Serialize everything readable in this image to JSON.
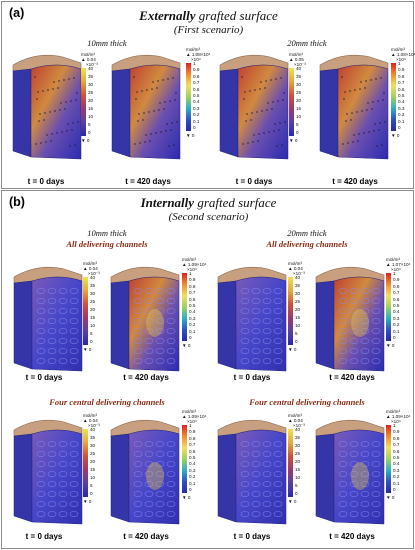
{
  "panel_a": {
    "label": "(a)",
    "title_bold": "Externally",
    "title_rest": " grafted surface",
    "subtitle": "(First scenario)",
    "headers": [
      "10mm thick",
      "20mm thick"
    ],
    "captions": [
      "t = 0 days",
      "t = 420 days",
      "t = 0 days",
      "t = 420 days"
    ],
    "colorbars": [
      {
        "unit": "mol/m³",
        "max": "▲ 0.04",
        "exp": "×10⁻³",
        "ticks": [
          "40",
          "35",
          "30",
          "25",
          "20",
          "15",
          "10",
          "5",
          "0"
        ],
        "min": "▼ 0",
        "gradient": "yellow"
      },
      {
        "unit": "mol/m³",
        "max": "▲ 1.08×10⁴",
        "exp": "×10⁴",
        "ticks": [
          "1",
          "0.9",
          "0.8",
          "0.7",
          "0.6",
          "0.5",
          "0.4",
          "0.3",
          "0.2",
          "0.1",
          "0"
        ],
        "min": "▼ 0",
        "gradient": "red"
      },
      {
        "unit": "mol/m³",
        "max": "▲ 0.05",
        "exp": "×10⁻³",
        "ticks": [
          "40",
          "35",
          "30",
          "25",
          "20",
          "15",
          "10",
          "5",
          "0"
        ],
        "min": "▼ 0",
        "gradient": "yellow"
      },
      {
        "unit": "mol/m³",
        "max": "▲ 1.08×10⁴",
        "exp": "×10⁴",
        "ticks": [
          "1",
          "0.9",
          "0.8",
          "0.7",
          "0.6",
          "0.5",
          "0.4",
          "0.3",
          "0.2",
          "0.1",
          "0"
        ],
        "min": "▼ 0",
        "gradient": "red"
      }
    ]
  },
  "panel_b": {
    "label": "(b)",
    "title_bold": "Internally",
    "title_rest": " grafted surface",
    "subtitle": "(Second scenario)",
    "headers": [
      "10mm thick",
      "20mm thick"
    ],
    "subheads_top": [
      "All delivering channels",
      "All delivering channels"
    ],
    "subheads_bottom": [
      "Four central delivering channels",
      "Four central delivering channels"
    ],
    "captions": [
      "t = 0 days",
      "t = 420 days",
      "t = 0 days",
      "t = 420 days",
      "t = 0 days",
      "t = 420 days",
      "t = 0 days",
      "t = 420 days"
    ],
    "colorbars": [
      {
        "unit": "mol/m³",
        "max": "▲ 0.04",
        "exp": "×10⁻³",
        "ticks": [
          "40",
          "35",
          "30",
          "25",
          "20",
          "15",
          "10",
          "5",
          "0"
        ],
        "min": "▼ 0",
        "gradient": "yellow"
      },
      {
        "unit": "mol/m³",
        "max": "▲ 1.09×10⁴",
        "exp": "×10⁴",
        "ticks": [
          "1",
          "0.9",
          "0.8",
          "0.7",
          "0.6",
          "0.5",
          "0.4",
          "0.3",
          "0.2",
          "0.1",
          "0"
        ],
        "min": "▼ 0",
        "gradient": "red"
      },
      {
        "unit": "mol/m³",
        "max": "▲ 0.04",
        "exp": "×10⁻³",
        "ticks": [
          "40",
          "35",
          "30",
          "25",
          "20",
          "15",
          "10",
          "5",
          "0"
        ],
        "min": "▼ 0",
        "gradient": "yellow"
      },
      {
        "unit": "mol/m³",
        "max": "▲ 1.07×10⁴",
        "exp": "×10⁴",
        "ticks": [
          "1",
          "0.9",
          "0.8",
          "0.7",
          "0.6",
          "0.5",
          "0.4",
          "0.3",
          "0.2",
          "0.1",
          "0"
        ],
        "min": "▼ 0",
        "gradient": "red"
      },
      {
        "unit": "mol/m³",
        "max": "▲ 0.04",
        "exp": "×10⁻³",
        "ticks": [
          "40",
          "35",
          "30",
          "25",
          "20",
          "15",
          "10",
          "5",
          "0"
        ],
        "min": "▼ 0",
        "gradient": "yellow"
      },
      {
        "unit": "mol/m³",
        "max": "▲ 1.09×10⁴",
        "exp": "×10⁴",
        "ticks": [
          "1",
          "0.9",
          "0.8",
          "0.7",
          "0.6",
          "0.5",
          "0.4",
          "0.3",
          "0.2",
          "0.1",
          "0"
        ],
        "min": "▼ 0",
        "gradient": "red"
      },
      {
        "unit": "mol/m³",
        "max": "▲ 0.04",
        "exp": "×10⁻³",
        "ticks": [
          "40",
          "35",
          "30",
          "25",
          "20",
          "15",
          "10",
          "5",
          "0"
        ],
        "min": "▼ 0",
        "gradient": "yellow"
      },
      {
        "unit": "mol/m³",
        "max": "▲ 1.09×10⁴",
        "exp": "×10⁴",
        "ticks": [
          "1",
          "0.9",
          "0.8",
          "0.7",
          "0.6",
          "0.5",
          "0.4",
          "0.3",
          "0.2",
          "0.1",
          "0"
        ],
        "min": "▼ 0",
        "gradient": "red"
      }
    ]
  },
  "colors": {
    "block_face": "#3f3fc0",
    "block_top": "#c8a080",
    "channel": "#5a5ad8",
    "hot_spot": "#f0d040",
    "subhead_red": "#8b2a12",
    "border": "#8c8c8c"
  }
}
